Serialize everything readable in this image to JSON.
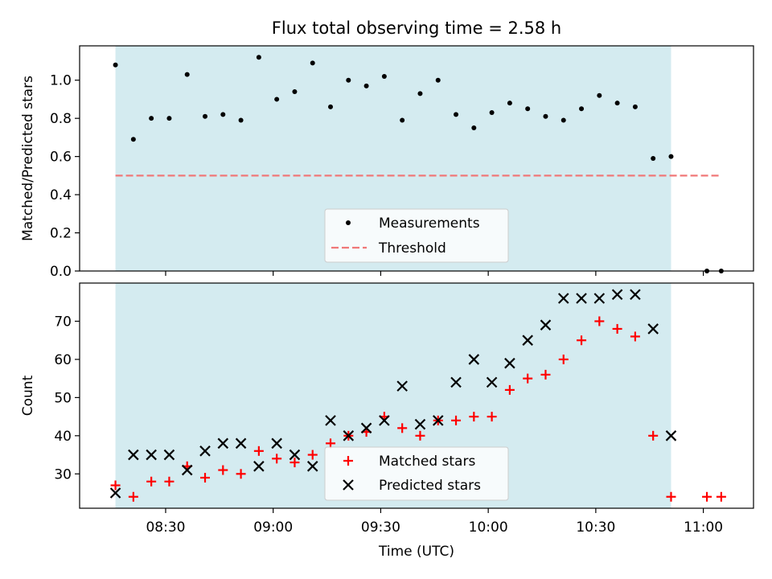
{
  "figure": {
    "title": "Flux total observing time = 2.58 h",
    "xlabel": "Time (UTC)",
    "x_ticks": [
      "08:30",
      "09:00",
      "09:30",
      "10:00",
      "10:30",
      "11:00"
    ]
  },
  "chart_data": [
    {
      "type": "scatter",
      "ylabel": "Matched/Predicted stars",
      "xlim": [
        "08:06",
        "11:14"
      ],
      "ylim": [
        0.0,
        1.18
      ],
      "y_ticks": [
        "0.0",
        "0.2",
        "0.4",
        "0.6",
        "0.8",
        "1.0"
      ],
      "shaded_interval": [
        "08:16",
        "10:51"
      ],
      "shade_color": "#d4ebf0",
      "threshold": {
        "name": "Threshold",
        "value": 0.5,
        "x_range": [
          "08:16",
          "11:05"
        ],
        "color": "#f07878"
      },
      "series": [
        {
          "name": "Measurements",
          "marker": "dot",
          "color": "#000000",
          "x": [
            "08:16",
            "08:21",
            "08:26",
            "08:31",
            "08:36",
            "08:41",
            "08:46",
            "08:51",
            "08:56",
            "09:01",
            "09:06",
            "09:11",
            "09:16",
            "09:21",
            "09:26",
            "09:31",
            "09:36",
            "09:41",
            "09:46",
            "09:51",
            "09:56",
            "10:01",
            "10:06",
            "10:11",
            "10:16",
            "10:21",
            "10:26",
            "10:31",
            "10:36",
            "10:41",
            "10:46",
            "10:51",
            "11:01",
            "11:05"
          ],
          "values": [
            1.08,
            0.69,
            0.8,
            0.8,
            1.03,
            0.81,
            0.82,
            0.79,
            1.12,
            0.9,
            0.94,
            1.09,
            0.86,
            1.0,
            0.97,
            1.02,
            0.79,
            0.93,
            1.0,
            0.82,
            0.75,
            0.83,
            0.88,
            0.85,
            0.81,
            0.79,
            0.85,
            0.92,
            0.88,
            0.86,
            0.59,
            0.6,
            0.0,
            0.0
          ]
        }
      ],
      "legend": "lower-center"
    },
    {
      "type": "scatter",
      "ylabel": "Count",
      "xlim": [
        "08:06",
        "11:14"
      ],
      "ylim": [
        21,
        80
      ],
      "y_ticks": [
        "30",
        "40",
        "50",
        "60",
        "70"
      ],
      "shaded_interval": [
        "08:16",
        "10:51"
      ],
      "shade_color": "#d4ebf0",
      "series": [
        {
          "name": "Matched stars",
          "marker": "plus",
          "color": "#ff0000",
          "x": [
            "08:16",
            "08:21",
            "08:26",
            "08:31",
            "08:36",
            "08:41",
            "08:46",
            "08:51",
            "08:56",
            "09:01",
            "09:06",
            "09:11",
            "09:16",
            "09:21",
            "09:26",
            "09:31",
            "09:36",
            "09:41",
            "09:46",
            "09:51",
            "09:56",
            "10:01",
            "10:06",
            "10:11",
            "10:16",
            "10:21",
            "10:26",
            "10:31",
            "10:36",
            "10:41",
            "10:46",
            "10:51",
            "11:01",
            "11:05"
          ],
          "values": [
            27,
            24,
            28,
            28,
            32,
            29,
            31,
            30,
            36,
            34,
            33,
            35,
            38,
            40,
            41,
            45,
            42,
            40,
            44,
            44,
            45,
            45,
            52,
            55,
            56,
            60,
            65,
            70,
            68,
            66,
            40,
            24,
            24,
            24
          ]
        },
        {
          "name": "Predicted stars",
          "marker": "x",
          "color": "#000000",
          "x": [
            "08:16",
            "08:21",
            "08:26",
            "08:31",
            "08:36",
            "08:41",
            "08:46",
            "08:51",
            "08:56",
            "09:01",
            "09:06",
            "09:11",
            "09:16",
            "09:21",
            "09:26",
            "09:31",
            "09:36",
            "09:41",
            "09:46",
            "09:51",
            "09:56",
            "10:01",
            "10:06",
            "10:11",
            "10:16",
            "10:21",
            "10:26",
            "10:31",
            "10:36",
            "10:41",
            "10:46",
            "10:51"
          ],
          "values": [
            25,
            35,
            35,
            35,
            31,
            36,
            38,
            38,
            32,
            38,
            35,
            32,
            44,
            40,
            42,
            44,
            53,
            43,
            44,
            54,
            60,
            54,
            59,
            65,
            69,
            76,
            76,
            76,
            77,
            77,
            68,
            40
          ]
        }
      ],
      "legend": "lower-center"
    }
  ]
}
